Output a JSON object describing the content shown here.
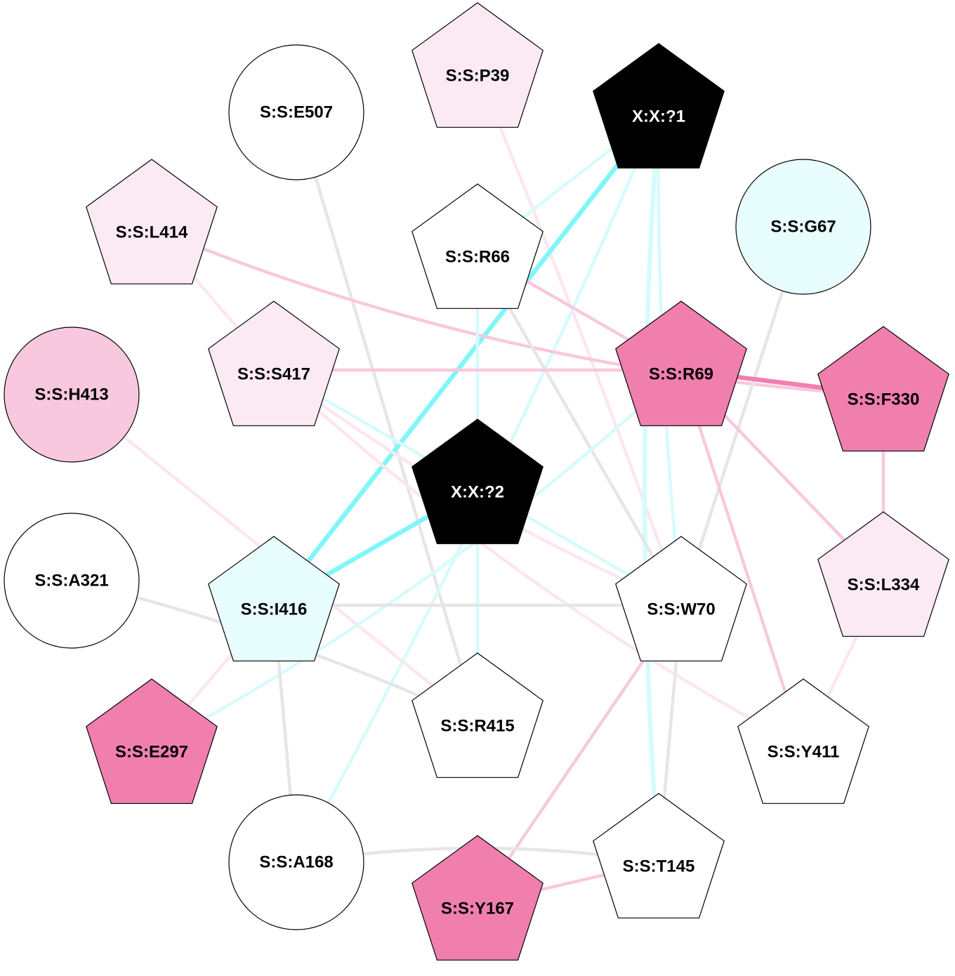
{
  "colors": {
    "white": "#ffffff",
    "black": "#000000",
    "pale_pink": "#fbeaf3",
    "light_pink": "#f8c8de",
    "pink": "#f07fae",
    "pale_cyan": "#e8fefe",
    "edge_gray": "#e6e6e6",
    "edge_light_pink": "#f8c8de",
    "edge_pale_pink": "#fce6ef",
    "edge_pink": "#f07fae",
    "edge_light_cyan": "#d6fbfd",
    "edge_cyan": "#80f6fa"
  },
  "nodes": [
    {
      "id": "S:S:E507",
      "label": "S:S:E507",
      "shape": "circle",
      "fill": "white",
      "text": "black"
    },
    {
      "id": "S:S:P39",
      "label": "S:S:P39",
      "shape": "pentagon",
      "fill": "pale_pink",
      "text": "black"
    },
    {
      "id": "X:X:?1",
      "label": "X:X:?1",
      "shape": "pentagon",
      "fill": "black",
      "text": "white"
    },
    {
      "id": "S:S:L414",
      "label": "S:S:L414",
      "shape": "pentagon",
      "fill": "pale_pink",
      "text": "black"
    },
    {
      "id": "S:S:R66",
      "label": "S:S:R66",
      "shape": "pentagon",
      "fill": "white",
      "text": "black"
    },
    {
      "id": "S:S:G67",
      "label": "S:S:G67",
      "shape": "circle",
      "fill": "pale_cyan",
      "text": "black"
    },
    {
      "id": "S:S:H413",
      "label": "S:S:H413",
      "shape": "circle",
      "fill": "light_pink",
      "text": "black"
    },
    {
      "id": "S:S:S417",
      "label": "S:S:S417",
      "shape": "pentagon",
      "fill": "pale_pink",
      "text": "black"
    },
    {
      "id": "S:S:R69",
      "label": "S:S:R69",
      "shape": "pentagon",
      "fill": "pink",
      "text": "black"
    },
    {
      "id": "S:S:F330",
      "label": "S:S:F330",
      "shape": "pentagon",
      "fill": "pink",
      "text": "black"
    },
    {
      "id": "X:X:?2",
      "label": "X:X:?2",
      "shape": "pentagon",
      "fill": "black",
      "text": "white"
    },
    {
      "id": "S:S:A321",
      "label": "S:S:A321",
      "shape": "circle",
      "fill": "white",
      "text": "black"
    },
    {
      "id": "S:S:I416",
      "label": "S:S:I416",
      "shape": "pentagon",
      "fill": "pale_cyan",
      "text": "black"
    },
    {
      "id": "S:S:W70",
      "label": "S:S:W70",
      "shape": "pentagon",
      "fill": "white",
      "text": "black"
    },
    {
      "id": "S:S:L334",
      "label": "S:S:L334",
      "shape": "pentagon",
      "fill": "pale_pink",
      "text": "black"
    },
    {
      "id": "S:S:E297",
      "label": "S:S:E297",
      "shape": "pentagon",
      "fill": "pink",
      "text": "black"
    },
    {
      "id": "S:S:R415",
      "label": "S:S:R415",
      "shape": "pentagon",
      "fill": "white",
      "text": "black"
    },
    {
      "id": "S:S:Y411",
      "label": "S:S:Y411",
      "shape": "pentagon",
      "fill": "white",
      "text": "black"
    },
    {
      "id": "S:S:A168",
      "label": "S:S:A168",
      "shape": "circle",
      "fill": "white",
      "text": "black"
    },
    {
      "id": "S:S:T145",
      "label": "S:S:T145",
      "shape": "pentagon",
      "fill": "white",
      "text": "black"
    },
    {
      "id": "S:S:Y167",
      "label": "S:S:Y167",
      "shape": "pentagon",
      "fill": "pink",
      "text": "black"
    }
  ],
  "edges": [
    {
      "from": "S:S:E507",
      "to": "S:S:R415",
      "color": "edge_gray",
      "weight": "thick"
    },
    {
      "from": "S:S:P39",
      "to": "S:S:W70",
      "color": "edge_pale_pink",
      "weight": "thick"
    },
    {
      "from": "X:X:?1",
      "to": "S:S:I416",
      "color": "edge_cyan",
      "weight": "heavy"
    },
    {
      "from": "X:X:?1",
      "to": "S:S:R66",
      "color": "edge_light_cyan",
      "weight": "thick"
    },
    {
      "from": "X:X:?1",
      "to": "S:S:T145",
      "color": "edge_light_cyan",
      "weight": "heavy"
    },
    {
      "from": "X:X:?1",
      "to": "S:S:W70",
      "color": "edge_light_cyan",
      "weight": "thick"
    },
    {
      "from": "X:X:?1",
      "to": "S:S:A168",
      "color": "edge_light_cyan",
      "weight": "thick"
    },
    {
      "from": "S:S:L414",
      "to": "S:S:F330",
      "color": "edge_light_pink",
      "weight": "thick"
    },
    {
      "from": "S:S:L414",
      "to": "S:S:S417",
      "color": "edge_pale_pink",
      "weight": "thick"
    },
    {
      "from": "S:S:R66",
      "to": "S:S:R69",
      "color": "edge_light_pink",
      "weight": "thick"
    },
    {
      "from": "S:S:R66",
      "to": "S:S:W70",
      "color": "edge_gray",
      "weight": "thick"
    },
    {
      "from": "S:S:R66",
      "to": "S:S:R415",
      "color": "edge_light_cyan",
      "weight": "thick"
    },
    {
      "from": "S:S:G67",
      "to": "S:S:W70",
      "color": "edge_gray",
      "weight": "thick"
    },
    {
      "from": "S:S:H413",
      "to": "S:S:R415",
      "color": "edge_pale_pink",
      "weight": "thick"
    },
    {
      "from": "S:S:S417",
      "to": "S:S:R69",
      "color": "edge_light_pink",
      "weight": "thick"
    },
    {
      "from": "S:S:S417",
      "to": "S:S:W70",
      "color": "edge_pale_pink",
      "weight": "thick"
    },
    {
      "from": "S:S:S417",
      "to": "S:S:Y411",
      "color": "edge_pale_pink",
      "weight": "thick"
    },
    {
      "from": "S:S:S417",
      "to": "X:X:?2",
      "color": "edge_light_cyan",
      "weight": "thick"
    },
    {
      "from": "S:S:R69",
      "to": "S:S:F330",
      "color": "edge_pink",
      "weight": "heavy"
    },
    {
      "from": "S:S:R69",
      "to": "S:S:L334",
      "color": "edge_light_pink",
      "weight": "thick"
    },
    {
      "from": "S:S:R69",
      "to": "S:S:Y411",
      "color": "edge_light_pink",
      "weight": "thick"
    },
    {
      "from": "S:S:R69",
      "to": "S:S:E297",
      "color": "edge_light_cyan",
      "weight": "thick"
    },
    {
      "from": "S:S:F330",
      "to": "S:S:L334",
      "color": "edge_light_pink",
      "weight": "thick"
    },
    {
      "from": "X:X:?2",
      "to": "S:S:I416",
      "color": "edge_cyan",
      "weight": "heavy"
    },
    {
      "from": "X:X:?2",
      "to": "S:S:W70",
      "color": "edge_light_cyan",
      "weight": "thick"
    },
    {
      "from": "X:X:?2",
      "to": "S:S:R415",
      "color": "edge_light_cyan",
      "weight": "thick"
    },
    {
      "from": "S:S:A321",
      "to": "S:S:R415",
      "color": "edge_gray",
      "weight": "thick"
    },
    {
      "from": "S:S:I416",
      "to": "S:S:W70",
      "color": "edge_gray",
      "weight": "thick"
    },
    {
      "from": "S:S:I416",
      "to": "S:S:A168",
      "color": "edge_gray",
      "weight": "thick"
    },
    {
      "from": "S:S:I416",
      "to": "S:S:E297",
      "color": "edge_pale_pink",
      "weight": "thick"
    },
    {
      "from": "S:S:W70",
      "to": "S:S:T145",
      "color": "edge_gray",
      "weight": "thick"
    },
    {
      "from": "S:S:W70",
      "to": "S:S:Y167",
      "color": "edge_light_pink",
      "weight": "thick"
    },
    {
      "from": "S:S:L334",
      "to": "S:S:Y411",
      "color": "edge_pale_pink",
      "weight": "thick"
    },
    {
      "from": "S:S:A168",
      "to": "S:S:T145",
      "color": "edge_gray",
      "weight": "thick"
    },
    {
      "from": "S:S:T145",
      "to": "S:S:Y167",
      "color": "edge_light_pink",
      "weight": "thick"
    }
  ]
}
